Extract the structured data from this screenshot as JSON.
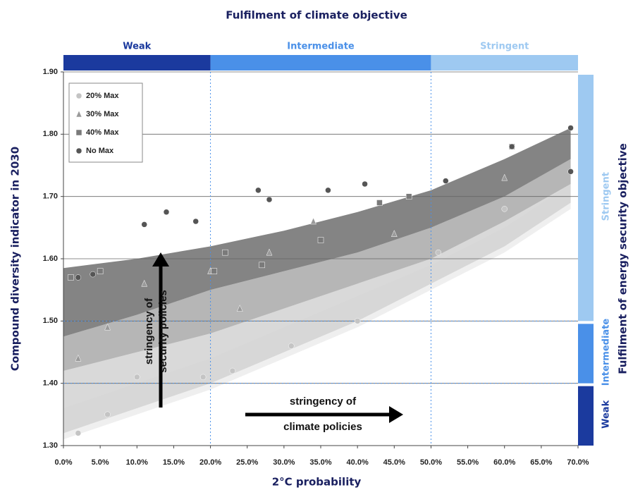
{
  "chart_data": {
    "type": "scatter",
    "title": "Fulfilment of climate objective",
    "right_title": "Fulfilment of energy security objective",
    "x_label": "2°C probability",
    "y_label": "Compound diversity indicator in 2030",
    "xlim": [
      0,
      70
    ],
    "ylim": [
      1.3,
      1.9
    ],
    "xticks": [
      {
        "value": 0,
        "label": "0.0%"
      },
      {
        "value": 5,
        "label": "5.0%"
      },
      {
        "value": 10,
        "label": "10.0%"
      },
      {
        "value": 15,
        "label": "15.0%"
      },
      {
        "value": 20,
        "label": "20.0%"
      },
      {
        "value": 25,
        "label": "25.0%"
      },
      {
        "value": 30,
        "label": "30.0%"
      },
      {
        "value": 35,
        "label": "35.0%"
      },
      {
        "value": 40,
        "label": "40.0%"
      },
      {
        "value": 45,
        "label": "45.0%"
      },
      {
        "value": 50,
        "label": "50.0%"
      },
      {
        "value": 55,
        "label": "55.0%"
      },
      {
        "value": 60,
        "label": "60.0%"
      },
      {
        "value": 65,
        "label": "65.0%"
      },
      {
        "value": 70,
        "label": "70.0%"
      }
    ],
    "yticks": [
      {
        "value": 1.3,
        "label": "1.30"
      },
      {
        "value": 1.4,
        "label": "1.40"
      },
      {
        "value": 1.5,
        "label": "1.50"
      },
      {
        "value": 1.6,
        "label": "1.60"
      },
      {
        "value": 1.7,
        "label": "1.70"
      },
      {
        "value": 1.8,
        "label": "1.80"
      },
      {
        "value": 1.9,
        "label": "1.90"
      }
    ],
    "grid": true,
    "legend": "top-left",
    "climate_segments": [
      {
        "label": "Weak",
        "range": [
          0,
          20
        ],
        "color": "#1b3a9e"
      },
      {
        "label": "Intermediate",
        "range": [
          20,
          50
        ],
        "color": "#4a90e8"
      },
      {
        "label": "Stringent",
        "range": [
          50,
          70
        ],
        "color": "#9ec9f1"
      }
    ],
    "security_segments": [
      {
        "label": "Weak",
        "range": [
          1.3,
          1.4
        ],
        "color": "#1b3a9e"
      },
      {
        "label": "Intermediate",
        "range": [
          1.4,
          1.5
        ],
        "color": "#4a90e8"
      },
      {
        "label": "Stringent",
        "range": [
          1.5,
          1.9
        ],
        "color": "#9ec9f1"
      }
    ],
    "bands": [
      {
        "color": "#ececec",
        "x": [
          0,
          10,
          20,
          30,
          40,
          50,
          60,
          69
        ],
        "upper": [
          1.36,
          1.4,
          1.44,
          1.49,
          1.54,
          1.59,
          1.65,
          1.72
        ],
        "lower": [
          1.31,
          1.35,
          1.39,
          1.44,
          1.49,
          1.55,
          1.61,
          1.68
        ]
      },
      {
        "color": "#d2d2d2",
        "x": [
          0,
          10,
          20,
          30,
          40,
          50,
          60,
          69
        ],
        "upper": [
          1.42,
          1.45,
          1.48,
          1.52,
          1.56,
          1.6,
          1.66,
          1.72
        ],
        "lower": [
          1.32,
          1.36,
          1.4,
          1.45,
          1.5,
          1.56,
          1.62,
          1.69
        ]
      },
      {
        "color": "#a9a9a9",
        "x": [
          0,
          10,
          20,
          30,
          40,
          50,
          60,
          69
        ],
        "upper": [
          1.475,
          1.51,
          1.55,
          1.58,
          1.61,
          1.65,
          1.7,
          1.76
        ],
        "lower": [
          1.42,
          1.45,
          1.48,
          1.52,
          1.56,
          1.6,
          1.66,
          1.72
        ]
      },
      {
        "color": "#6f6f6f",
        "x": [
          0,
          10,
          20,
          30,
          40,
          50,
          60,
          69
        ],
        "upper": [
          1.585,
          1.6,
          1.62,
          1.645,
          1.675,
          1.71,
          1.76,
          1.81
        ],
        "lower": [
          1.475,
          1.51,
          1.55,
          1.58,
          1.61,
          1.65,
          1.7,
          1.76
        ]
      }
    ],
    "series": [
      {
        "name": "20% Max",
        "color": "#c4c4c4",
        "marker": "circle",
        "x": [
          2,
          6,
          10,
          19,
          23,
          31,
          40,
          51,
          60
        ],
        "values": [
          1.32,
          1.35,
          1.41,
          1.41,
          1.42,
          1.46,
          1.5,
          1.61,
          1.68
        ]
      },
      {
        "name": "30% Max",
        "color": "#9a9a9a",
        "marker": "triangle",
        "x": [
          2,
          6,
          11,
          20,
          24,
          28,
          34,
          45,
          60
        ],
        "values": [
          1.44,
          1.49,
          1.56,
          1.58,
          1.52,
          1.61,
          1.66,
          1.64,
          1.73
        ]
      },
      {
        "name": "40% Max",
        "color": "#7a7a7a",
        "marker": "square",
        "x": [
          1,
          5,
          20.5,
          22,
          27,
          35,
          43,
          47,
          61
        ],
        "values": [
          1.57,
          1.58,
          1.58,
          1.61,
          1.59,
          1.63,
          1.69,
          1.7,
          1.78
        ]
      },
      {
        "name": "No Max",
        "color": "#555555",
        "marker": "circle",
        "x": [
          2,
          4,
          11,
          14,
          18,
          26.5,
          28,
          36,
          41,
          52,
          61,
          69,
          69
        ],
        "values": [
          1.57,
          1.575,
          1.655,
          1.675,
          1.66,
          1.71,
          1.695,
          1.71,
          1.72,
          1.725,
          1.78,
          1.81,
          1.74
        ]
      }
    ],
    "annotations": [
      {
        "lines": [
          "stringency of",
          "security policies"
        ]
      },
      {
        "lines": [
          "stringency of",
          "climate policies"
        ]
      }
    ]
  }
}
